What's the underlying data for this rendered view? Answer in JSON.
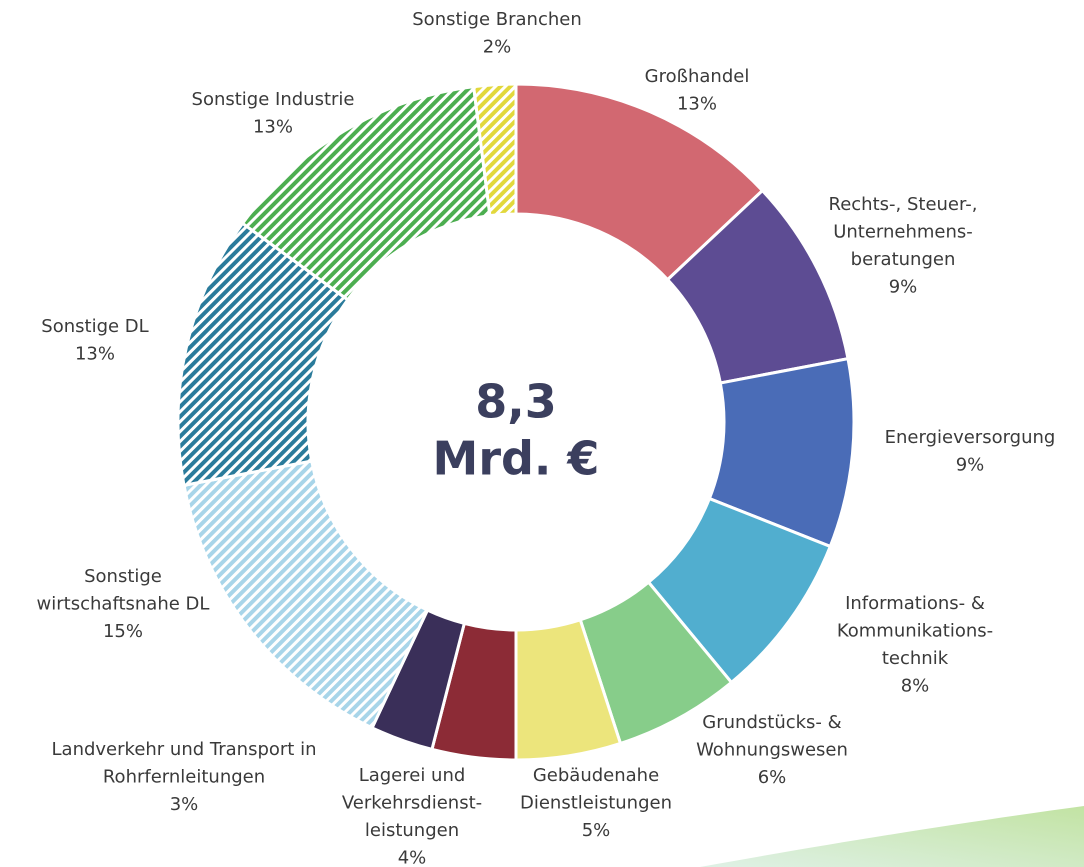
{
  "chart_data": {
    "type": "donut",
    "center_text": [
      "8,3",
      "Mrd. €"
    ],
    "categories": [
      "Großhandel",
      "Rechts-, Steuer-,\nUnternehmens-\nberatungen",
      "Energieversorgung",
      "Informations- &\nKommunikations-\ntechnik",
      "Grundstücks- &\nWohnungswesen",
      "Gebäudenahe\nDienstleistungen",
      "Lagerei und\nVerkehrsdienst-\nleistungen",
      "Landverkehr und Transport in\nRohrfernleitungen",
      "Sonstige\nwirtschaftsnahe DL",
      "Sonstige DL",
      "Sonstige Industrie",
      "Sonstige Branchen"
    ],
    "values": [
      13,
      9,
      9,
      8,
      6,
      5,
      4,
      3,
      15,
      13,
      13,
      2
    ],
    "value_labels": [
      "13%",
      "9%",
      "9%",
      "8%",
      "6%",
      "5%",
      "4%",
      "3%",
      "15%",
      "13%",
      "13%",
      "2%"
    ],
    "colors": [
      "#d26871",
      "#5d4c93",
      "#4a6cb7",
      "#51aecf",
      "#87cd8a",
      "#ece57c",
      "#8c2b36",
      "#3a2f59",
      "#a8d5e9",
      "#2a7b9b",
      "#4cae50",
      "#e2d83c"
    ],
    "hatched": [
      false,
      false,
      false,
      false,
      false,
      false,
      false,
      false,
      true,
      true,
      true,
      true
    ]
  }
}
